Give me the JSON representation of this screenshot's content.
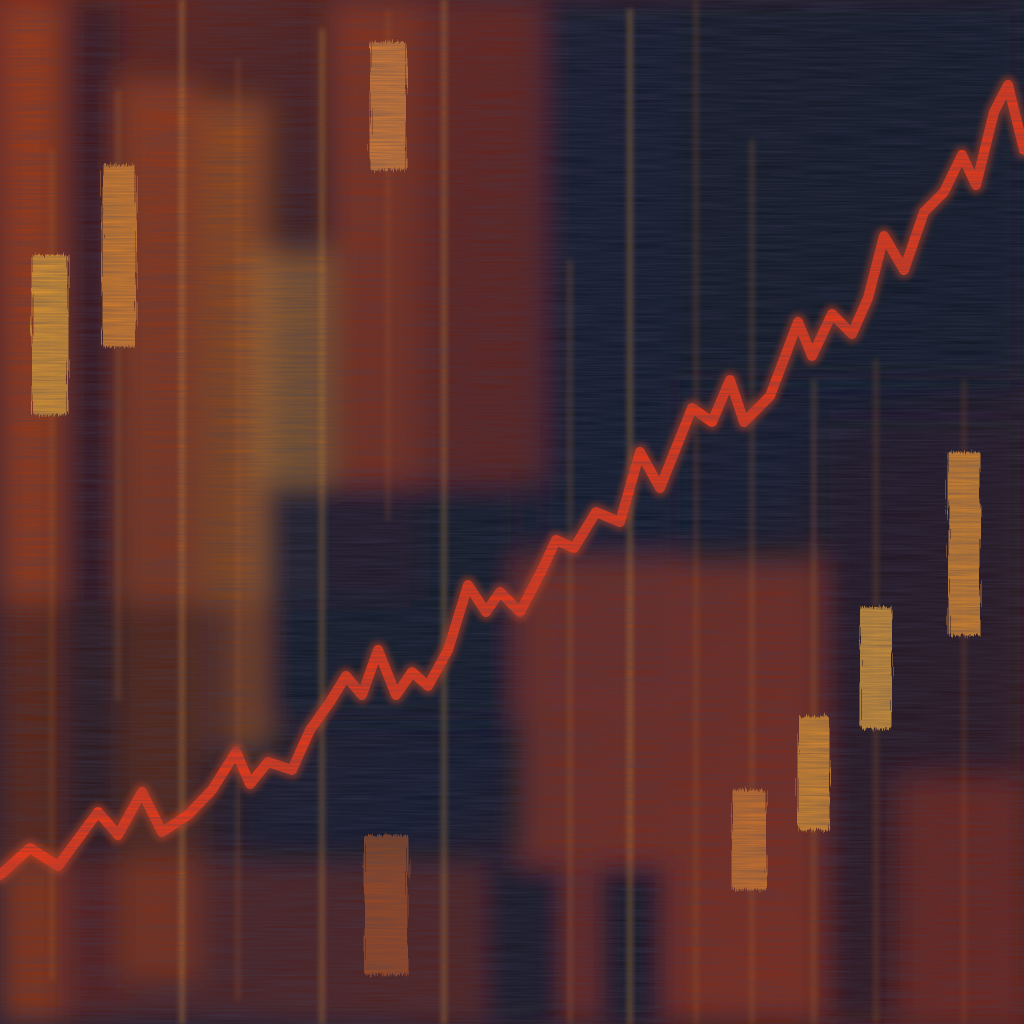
{
  "artwork": {
    "subject": "abstract-painted-candlestick-chart",
    "palette": {
      "background_dark": "#0c1220",
      "navy": "#131a2c",
      "rust": "#8a2a10",
      "ember": "#c23a12",
      "orange": "#e06a1a",
      "amber": "#e8a030",
      "trend_red": "#ff3a12"
    }
  }
}
